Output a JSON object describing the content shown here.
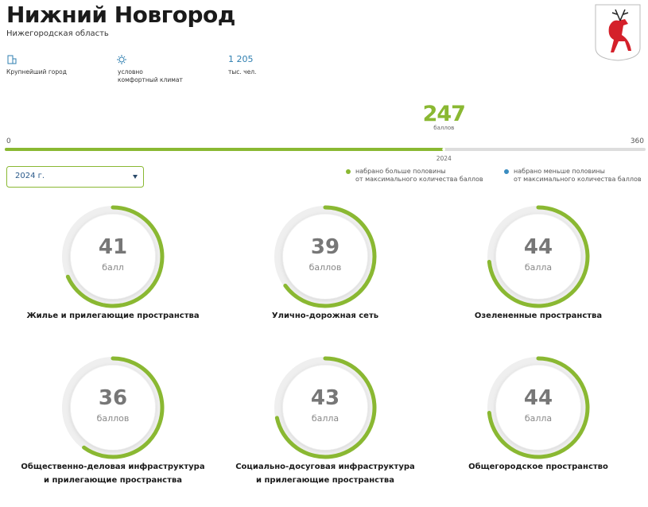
{
  "header": {
    "title": "Нижний Новгород",
    "subtitle": "Нижегородская область"
  },
  "facts": [
    {
      "label": "Крупнейший город"
    },
    {
      "label": "условно\nкомфортный климат"
    },
    {
      "value": "1 205",
      "label": "тыс. чел."
    }
  ],
  "score": {
    "value": 247,
    "unit": "баллов",
    "min": 0,
    "max": 360,
    "year": "2024",
    "color": "#8ab832",
    "track_color": "#dddddd"
  },
  "select": {
    "label": "2024 г."
  },
  "legend": [
    {
      "text": "набрано больше половины\nот максимального количества баллов",
      "color": "#8ab832"
    },
    {
      "text": "набрано меньше половины\nот максимального количества баллов",
      "color": "#3a8cc0"
    }
  ],
  "categories": [
    {
      "score": 41,
      "unit": "балл",
      "name": "Жилье и прилегающие пространства"
    },
    {
      "score": 39,
      "unit": "баллов",
      "name": "Улично-дорожная сеть"
    },
    {
      "score": 44,
      "unit": "балла",
      "name": "Озелененные пространства"
    },
    {
      "score": 36,
      "unit": "баллов",
      "name": "Общественно-деловая инфраструктура\nи прилегающие пространства"
    },
    {
      "score": 43,
      "unit": "балла",
      "name": "Социально-досуговая инфраструктура\nи прилегающие пространства"
    },
    {
      "score": 44,
      "unit": "балла",
      "name": "Общегородское пространство"
    }
  ]
}
